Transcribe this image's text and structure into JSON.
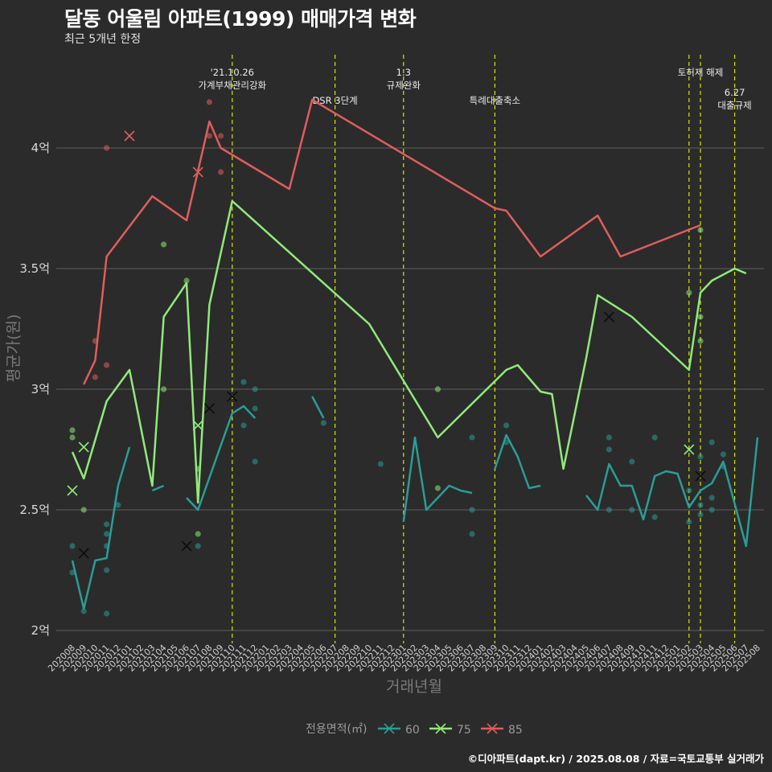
{
  "title": "달동 어울림 아파트(1999) 매매가격 변화",
  "subtitle": "최근 5개년 한정",
  "caption": "©디아파트(dapt.kr) / 2025.08.08 / 자료=국토교통부 실거래가",
  "chart_data": {
    "type": "line",
    "xlabel": "거래년월",
    "ylabel": "평균가(원)",
    "ylim": [
      1.95,
      4.5
    ],
    "y_ticks": [
      2,
      2.5,
      3,
      3.5,
      4
    ],
    "y_tick_labels": [
      "2억",
      "2.5억",
      "3억",
      "3.5억",
      "4억"
    ],
    "grid": true,
    "legend_title": "전용면적(㎡)",
    "legend_position": "bottom",
    "categories": [
      "202008",
      "202009",
      "202010",
      "202011",
      "202012",
      "202101",
      "202102",
      "202103",
      "202104",
      "202105",
      "202106",
      "202107",
      "202108",
      "202109",
      "202110",
      "202111",
      "202112",
      "202201",
      "202202",
      "202203",
      "202204",
      "202205",
      "202206",
      "202207",
      "202208",
      "202209",
      "202210",
      "202211",
      "202212",
      "202301",
      "202302",
      "202303",
      "202304",
      "202305",
      "202306",
      "202307",
      "202308",
      "202309",
      "202310",
      "202311",
      "202312",
      "202401",
      "202402",
      "202403",
      "202404",
      "202405",
      "202406",
      "202407",
      "202408",
      "202409",
      "202410",
      "202411",
      "202412",
      "202501",
      "202502",
      "202503",
      "202504",
      "202505",
      "202506",
      "202507",
      "202508"
    ],
    "series": [
      {
        "name": "60",
        "color": "#2a9d96",
        "segments": [
          [
            [
              "202008",
              2.29
            ],
            [
              "202009",
              2.09
            ],
            [
              "202010",
              2.29
            ],
            [
              "202011",
              2.3
            ],
            [
              "202012",
              2.6
            ],
            [
              "202101",
              2.76
            ]
          ],
          [
            [
              "202103",
              2.58
            ],
            [
              "202104",
              2.6
            ]
          ],
          [
            [
              "202106",
              2.55
            ],
            [
              "202107",
              2.5
            ],
            [
              "202110",
              2.9
            ],
            [
              "202111",
              2.93
            ],
            [
              "202112",
              2.88
            ]
          ],
          [
            [
              "202205",
              2.97
            ],
            [
              "202206",
              2.88
            ]
          ],
          [
            [
              "202301",
              2.45
            ],
            [
              "202302",
              2.8
            ],
            [
              "202303",
              2.5
            ],
            [
              "202305",
              2.6
            ],
            [
              "202306",
              2.58
            ],
            [
              "202307",
              2.57
            ]
          ],
          [
            [
              "202309",
              2.67
            ],
            [
              "202310",
              2.81
            ],
            [
              "202311",
              2.72
            ],
            [
              "202312",
              2.59
            ],
            [
              "202401",
              2.6
            ]
          ],
          [
            [
              "202405",
              2.56
            ],
            [
              "202406",
              2.5
            ],
            [
              "202407",
              2.69
            ],
            [
              "202408",
              2.6
            ],
            [
              "202409",
              2.6
            ],
            [
              "202410",
              2.46
            ],
            [
              "202411",
              2.64
            ],
            [
              "202412",
              2.66
            ],
            [
              "202501",
              2.65
            ],
            [
              "202502",
              2.51
            ],
            [
              "202503",
              2.58
            ],
            [
              "202504",
              2.61
            ],
            [
              "202505",
              2.7
            ],
            [
              "202507",
              2.35
            ],
            [
              "202508",
              2.8
            ]
          ]
        ]
      },
      {
        "name": "75",
        "color": "#90ea7a",
        "segments": [
          [
            [
              "202008",
              2.74
            ],
            [
              "202009",
              2.63
            ],
            [
              "202011",
              2.95
            ],
            [
              "202101",
              3.08
            ],
            [
              "202103",
              2.6
            ],
            [
              "202104",
              3.3
            ],
            [
              "202106",
              3.44
            ],
            [
              "202107",
              2.53
            ],
            [
              "202108",
              3.35
            ],
            [
              "202110",
              3.78
            ],
            [
              "202210",
              3.27
            ],
            [
              "202304",
              2.8
            ],
            [
              "202310",
              3.08
            ],
            [
              "202311",
              3.1
            ],
            [
              "202401",
              2.99
            ],
            [
              "202402",
              2.98
            ],
            [
              "202403",
              2.67
            ],
            [
              "202405",
              3.13
            ],
            [
              "202406",
              3.39
            ],
            [
              "202409",
              3.3
            ],
            [
              "202502",
              3.08
            ],
            [
              "202503",
              3.4
            ],
            [
              "202504",
              3.45
            ],
            [
              "202506",
              3.5
            ],
            [
              "202507",
              3.48
            ]
          ]
        ]
      },
      {
        "name": "85",
        "color": "#e05d5d",
        "segments": [
          [
            [
              "202009",
              3.02
            ],
            [
              "202010",
              3.12
            ],
            [
              "202011",
              3.55
            ],
            [
              "202103",
              3.8
            ],
            [
              "202106",
              3.7
            ],
            [
              "202108",
              4.11
            ],
            [
              "202109",
              4.0
            ],
            [
              "202203",
              3.83
            ],
            [
              "202205",
              4.2
            ],
            [
              "202309",
              3.75
            ],
            [
              "202310",
              3.74
            ],
            [
              "202401",
              3.55
            ],
            [
              "202406",
              3.72
            ],
            [
              "202408",
              3.55
            ],
            [
              "202503",
              3.68
            ]
          ]
        ]
      }
    ],
    "scatter_points": [
      {
        "size": "60",
        "x": "202008",
        "y": 2.35
      },
      {
        "size": "60",
        "x": "202008",
        "y": 2.24
      },
      {
        "size": "60",
        "x": "202009",
        "y": 2.08
      },
      {
        "size": "60",
        "x": "202011",
        "y": 2.44
      },
      {
        "size": "60",
        "x": "202011",
        "y": 2.4
      },
      {
        "size": "60",
        "x": "202011",
        "y": 2.35
      },
      {
        "size": "60",
        "x": "202011",
        "y": 2.25
      },
      {
        "size": "60",
        "x": "202011",
        "y": 2.07
      },
      {
        "size": "60",
        "x": "202012",
        "y": 2.52
      },
      {
        "size": "60",
        "x": "202107",
        "y": 2.35
      },
      {
        "size": "60",
        "x": "202111",
        "y": 3.03
      },
      {
        "size": "60",
        "x": "202111",
        "y": 2.85
      },
      {
        "size": "60",
        "x": "202112",
        "y": 3.0
      },
      {
        "size": "60",
        "x": "202112",
        "y": 2.92
      },
      {
        "size": "60",
        "x": "202112",
        "y": 2.7
      },
      {
        "size": "60",
        "x": "202206",
        "y": 2.86
      },
      {
        "size": "60",
        "x": "202211",
        "y": 2.69
      },
      {
        "size": "60",
        "x": "202307",
        "y": 2.8
      },
      {
        "size": "60",
        "x": "202307",
        "y": 2.5
      },
      {
        "size": "60",
        "x": "202307",
        "y": 2.4
      },
      {
        "size": "60",
        "x": "202310",
        "y": 2.85
      },
      {
        "size": "60",
        "x": "202310",
        "y": 2.78
      },
      {
        "size": "60",
        "x": "202407",
        "y": 2.8
      },
      {
        "size": "60",
        "x": "202407",
        "y": 2.75
      },
      {
        "size": "60",
        "x": "202407",
        "y": 2.5
      },
      {
        "size": "60",
        "x": "202409",
        "y": 2.7
      },
      {
        "size": "60",
        "x": "202409",
        "y": 2.5
      },
      {
        "size": "60",
        "x": "202411",
        "y": 2.8
      },
      {
        "size": "60",
        "x": "202411",
        "y": 2.47
      },
      {
        "size": "60",
        "x": "202502",
        "y": 2.58
      },
      {
        "size": "60",
        "x": "202502",
        "y": 2.45
      },
      {
        "size": "60",
        "x": "202503",
        "y": 2.72
      },
      {
        "size": "60",
        "x": "202503",
        "y": 2.52
      },
      {
        "size": "60",
        "x": "202503",
        "y": 2.48
      },
      {
        "size": "60",
        "x": "202504",
        "y": 2.78
      },
      {
        "size": "60",
        "x": "202504",
        "y": 2.55
      },
      {
        "size": "60",
        "x": "202504",
        "y": 2.5
      },
      {
        "size": "60",
        "x": "202505",
        "y": 2.73
      },
      {
        "size": "60",
        "x": "202505",
        "y": 2.68
      },
      {
        "size": "75",
        "x": "202008",
        "y": 2.83
      },
      {
        "size": "75",
        "x": "202008",
        "y": 2.8
      },
      {
        "size": "75",
        "x": "202009",
        "y": 2.5
      },
      {
        "size": "75",
        "x": "202104",
        "y": 3.6
      },
      {
        "size": "75",
        "x": "202104",
        "y": 3.0
      },
      {
        "size": "75",
        "x": "202106",
        "y": 3.45
      },
      {
        "size": "75",
        "x": "202107",
        "y": 2.67
      },
      {
        "size": "75",
        "x": "202107",
        "y": 2.4
      },
      {
        "size": "75",
        "x": "202304",
        "y": 3.0
      },
      {
        "size": "75",
        "x": "202304",
        "y": 2.59
      },
      {
        "size": "75",
        "x": "202502",
        "y": 3.4
      },
      {
        "size": "75",
        "x": "202503",
        "y": 3.66
      },
      {
        "size": "75",
        "x": "202503",
        "y": 3.3
      },
      {
        "size": "75",
        "x": "202503",
        "y": 3.2
      },
      {
        "size": "85",
        "x": "202010",
        "y": 3.2
      },
      {
        "size": "85",
        "x": "202010",
        "y": 3.05
      },
      {
        "size": "85",
        "x": "202011",
        "y": 4.0
      },
      {
        "size": "85",
        "x": "202011",
        "y": 3.1
      },
      {
        "size": "85",
        "x": "202108",
        "y": 4.19
      },
      {
        "size": "85",
        "x": "202108",
        "y": 4.05
      },
      {
        "size": "85",
        "x": "202109",
        "y": 4.05
      },
      {
        "size": "85",
        "x": "202109",
        "y": 3.9
      }
    ],
    "x_markers": [
      {
        "size": "60",
        "x": "202009",
        "y": 2.32
      },
      {
        "size": "60",
        "x": "202106",
        "y": 2.35
      },
      {
        "size": "60",
        "x": "202108",
        "y": 2.92
      },
      {
        "size": "60",
        "x": "202110",
        "y": 2.97
      },
      {
        "size": "60",
        "x": "202407",
        "y": 3.3
      },
      {
        "size": "60",
        "x": "202503",
        "y": 2.64
      },
      {
        "size": "75",
        "x": "202008",
        "y": 2.58
      },
      {
        "size": "75",
        "x": "202009",
        "y": 2.76
      },
      {
        "size": "75",
        "x": "202107",
        "y": 2.85
      },
      {
        "size": "75",
        "x": "202502",
        "y": 2.75
      },
      {
        "size": "85",
        "x": "202101",
        "y": 4.05
      },
      {
        "size": "85",
        "x": "202107",
        "y": 3.9
      }
    ],
    "events": [
      {
        "x": "202110",
        "lines": [
          "'21.10.26",
          "가계부채관리강화"
        ],
        "row": 0
      },
      {
        "x": "202207",
        "lines": [
          "DSR 3단계"
        ],
        "row": 1
      },
      {
        "x": "202301",
        "lines": [
          "1.3",
          "규제완화"
        ],
        "row": 0
      },
      {
        "x": "202309",
        "lines": [
          "특례대출축소"
        ],
        "row": 1
      },
      {
        "x": "202502",
        "lines": [],
        "row": 0
      },
      {
        "x": "202503",
        "lines": [
          "토허제 해제"
        ],
        "row": 0
      },
      {
        "x": "202506",
        "lines": [
          "6.27",
          "대출규제"
        ],
        "row": 1
      }
    ]
  }
}
